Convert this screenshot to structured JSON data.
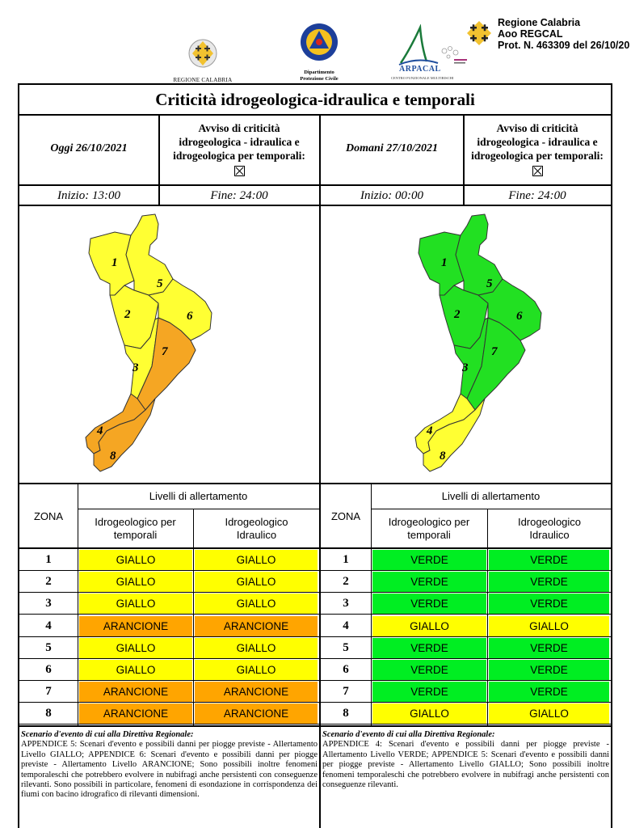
{
  "header": {
    "logo_regione_caption": "REGIONE CALABRIA",
    "logo_pc_caption_1": "Dipartimento",
    "logo_pc_caption_2": "Protezione Civile",
    "logo_arpacal_name": "ARPACAL",
    "logo_arpacal_sub": "CENTRO FUNZIONALE MULTIRISCHI",
    "protocol": {
      "line1": "Regione Calabria",
      "line2": "Aoo REGCAL",
      "line3": "Prot. N. 463309 del 26/10/20"
    }
  },
  "title": "Criticità idrogeologica-idraulica e temporali",
  "today": {
    "day_label": "Oggi 26/10/2021",
    "avviso": [
      "Avviso di criticità",
      "idrogeologica - idraulica e",
      "idrogeologica per temporali:"
    ],
    "start": "Inizio: 13:00",
    "end": "Fine: 24:00",
    "levels": [
      {
        "zone": "1",
        "temporali": "GIALLO",
        "idraulico": "GIALLO"
      },
      {
        "zone": "2",
        "temporali": "GIALLO",
        "idraulico": "GIALLO"
      },
      {
        "zone": "3",
        "temporali": "GIALLO",
        "idraulico": "GIALLO"
      },
      {
        "zone": "4",
        "temporali": "ARANCIONE",
        "idraulico": "ARANCIONE"
      },
      {
        "zone": "5",
        "temporali": "GIALLO",
        "idraulico": "GIALLO"
      },
      {
        "zone": "6",
        "temporali": "GIALLO",
        "idraulico": "GIALLO"
      },
      {
        "zone": "7",
        "temporali": "ARANCIONE",
        "idraulico": "ARANCIONE"
      },
      {
        "zone": "8",
        "temporali": "ARANCIONE",
        "idraulico": "ARANCIONE"
      }
    ],
    "scenario_title": "Scenario d'evento di cui alla Direttiva Regionale:",
    "scenario_text": "APPENDICE 5: Scenari d'evento e possibili danni per piogge previste - Allertamento Livello GIALLO; APPENDICE 6: Scenari d'evento e possibili danni per piogge previste - Allertamento Livello ARANCIONE; Sono possibili inoltre fenomeni temporaleschi che potrebbero evolvere in nubifragi anche persistenti con conseguenze rilevanti. Sono possibili in particolare, fenomeni di esondazione in corrispondenza dei fiumi con bacino idrografico di rilevanti dimensioni."
  },
  "tomorrow": {
    "day_label": "Domani 27/10/2021",
    "avviso": [
      "Avviso di criticità",
      "idrogeologica - idraulica e",
      "idrogeologica per temporali:"
    ],
    "start": "Inizio: 00:00",
    "end": "Fine: 24:00",
    "levels": [
      {
        "zone": "1",
        "temporali": "VERDE",
        "idraulico": "VERDE"
      },
      {
        "zone": "2",
        "temporali": "VERDE",
        "idraulico": "VERDE"
      },
      {
        "zone": "3",
        "temporali": "VERDE",
        "idraulico": "VERDE"
      },
      {
        "zone": "4",
        "temporali": "GIALLO",
        "idraulico": "GIALLO"
      },
      {
        "zone": "5",
        "temporali": "VERDE",
        "idraulico": "VERDE"
      },
      {
        "zone": "6",
        "temporali": "VERDE",
        "idraulico": "VERDE"
      },
      {
        "zone": "7",
        "temporali": "VERDE",
        "idraulico": "VERDE"
      },
      {
        "zone": "8",
        "temporali": "GIALLO",
        "idraulico": "GIALLO"
      }
    ],
    "scenario_title": "Scenario d'evento di cui alla Direttiva Regionale:",
    "scenario_text": "APPENDICE 4: Scenari d'evento e possibili danni per piogge previste - Allertamento Livello VERDE; APPENDICE 5: Scenari d'evento e possibili danni per piogge previste - Allertamento Livello GIALLO; Sono possibili inoltre fenomeni temporaleschi che potrebbero evolvere in nubifragi anche persistenti con conseguenze rilevanti."
  },
  "table_labels": {
    "zona": "ZONA",
    "livelli": "Livelli di allertamento",
    "col_temporali": [
      "Idrogeologico per",
      "temporali"
    ],
    "col_idraulico": [
      "Idrogeologico",
      "Idraulico"
    ]
  },
  "colors": {
    "GIALLO": "#ffff00",
    "ARANCIONE": "#ffa500",
    "VERDE": "#00ee22",
    "map_yellow": "#ffff33",
    "map_orange": "#f5a623",
    "map_green": "#22e022"
  }
}
